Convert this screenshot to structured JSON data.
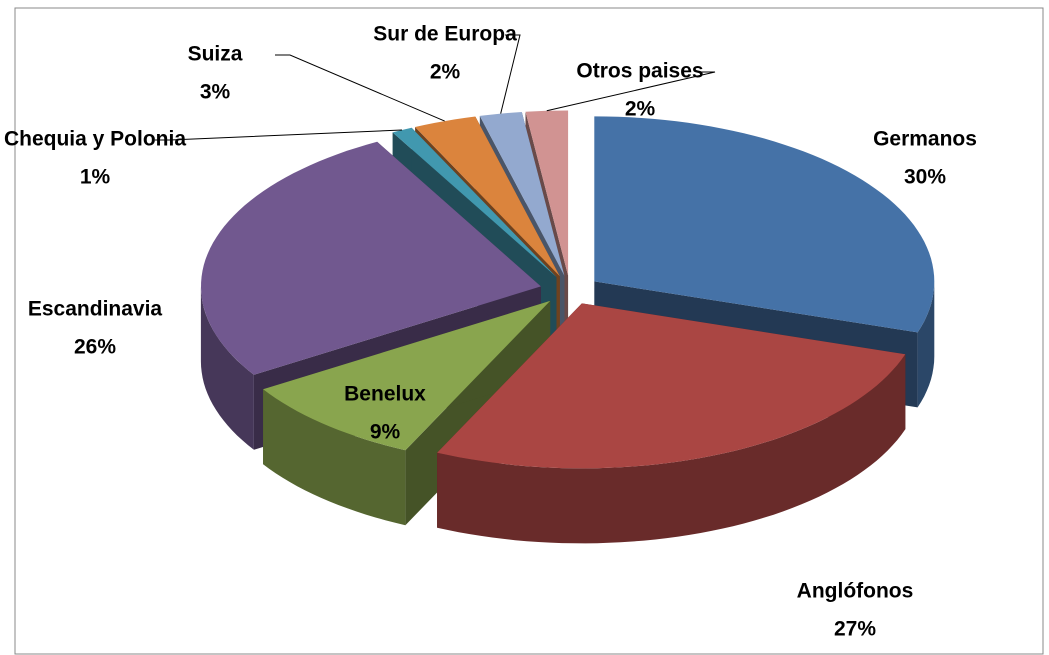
{
  "chart_data": {
    "type": "pie3d",
    "categories": [
      "Germanos",
      "Anglófonos",
      "Benelux",
      "Escandinavia",
      "Chequia y Polonia",
      "Suiza",
      "Sur de Europa",
      "Otros paises"
    ],
    "values": [
      30,
      27,
      9,
      26,
      1,
      3,
      2,
      2
    ],
    "value_labels": [
      "30%",
      "27%",
      "9%",
      "26%",
      "1%",
      "3%",
      "2%",
      "2%"
    ],
    "colors": [
      "#4572a7",
      "#aa4643",
      "#89a54e",
      "#71588f",
      "#4198af",
      "#db843d",
      "#93a9cf",
      "#d19392"
    ]
  }
}
